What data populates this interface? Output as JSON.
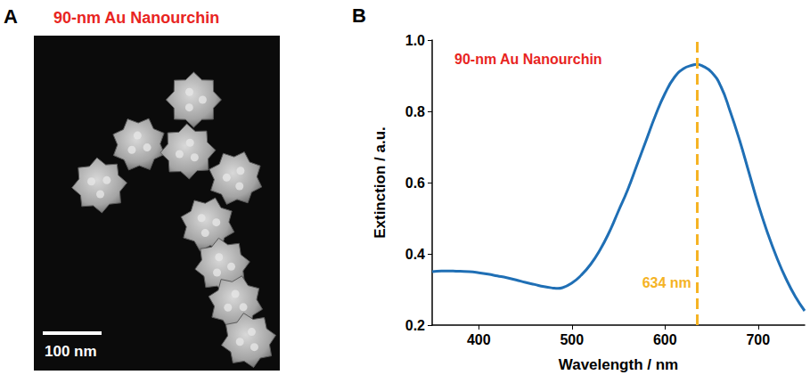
{
  "panel_a": {
    "label": "A",
    "title": "90-nm Au Nanourchin",
    "scale_bar": "100 nm"
  },
  "chart_data": {
    "type": "line",
    "panel_label": "B",
    "title": "90-nm Au Nanourchin",
    "x_label": "Wavelength / nm",
    "y_label": "Extinction / a.u.",
    "x": [
      350,
      360,
      370,
      380,
      390,
      400,
      410,
      420,
      430,
      440,
      450,
      460,
      470,
      480,
      485,
      490,
      500,
      510,
      520,
      530,
      540,
      550,
      560,
      570,
      580,
      590,
      600,
      610,
      620,
      630,
      634,
      640,
      650,
      660,
      670,
      680,
      690,
      700,
      710,
      720,
      730,
      740,
      750
    ],
    "values": [
      0.35,
      0.352,
      0.352,
      0.351,
      0.35,
      0.347,
      0.343,
      0.338,
      0.333,
      0.327,
      0.32,
      0.314,
      0.308,
      0.304,
      0.303,
      0.305,
      0.318,
      0.34,
      0.37,
      0.41,
      0.46,
      0.52,
      0.58,
      0.65,
      0.72,
      0.79,
      0.85,
      0.895,
      0.92,
      0.93,
      0.932,
      0.928,
      0.91,
      0.87,
      0.8,
      0.72,
      0.63,
      0.54,
      0.46,
      0.39,
      0.33,
      0.28,
      0.24
    ],
    "color": "#1f6fb5",
    "xlim": [
      350,
      750
    ],
    "xticks": [
      400,
      500,
      600,
      700
    ],
    "ylim": [
      0.2,
      1
    ],
    "yticks": [
      0.2,
      0.4,
      0.6,
      0.8,
      {
        "value": 1,
        "label": "1.0"
      }
    ],
    "grid": false,
    "annotation": {
      "text": "634 nm",
      "x": 634,
      "color": "#f5b324",
      "line_style": "dashed"
    }
  }
}
